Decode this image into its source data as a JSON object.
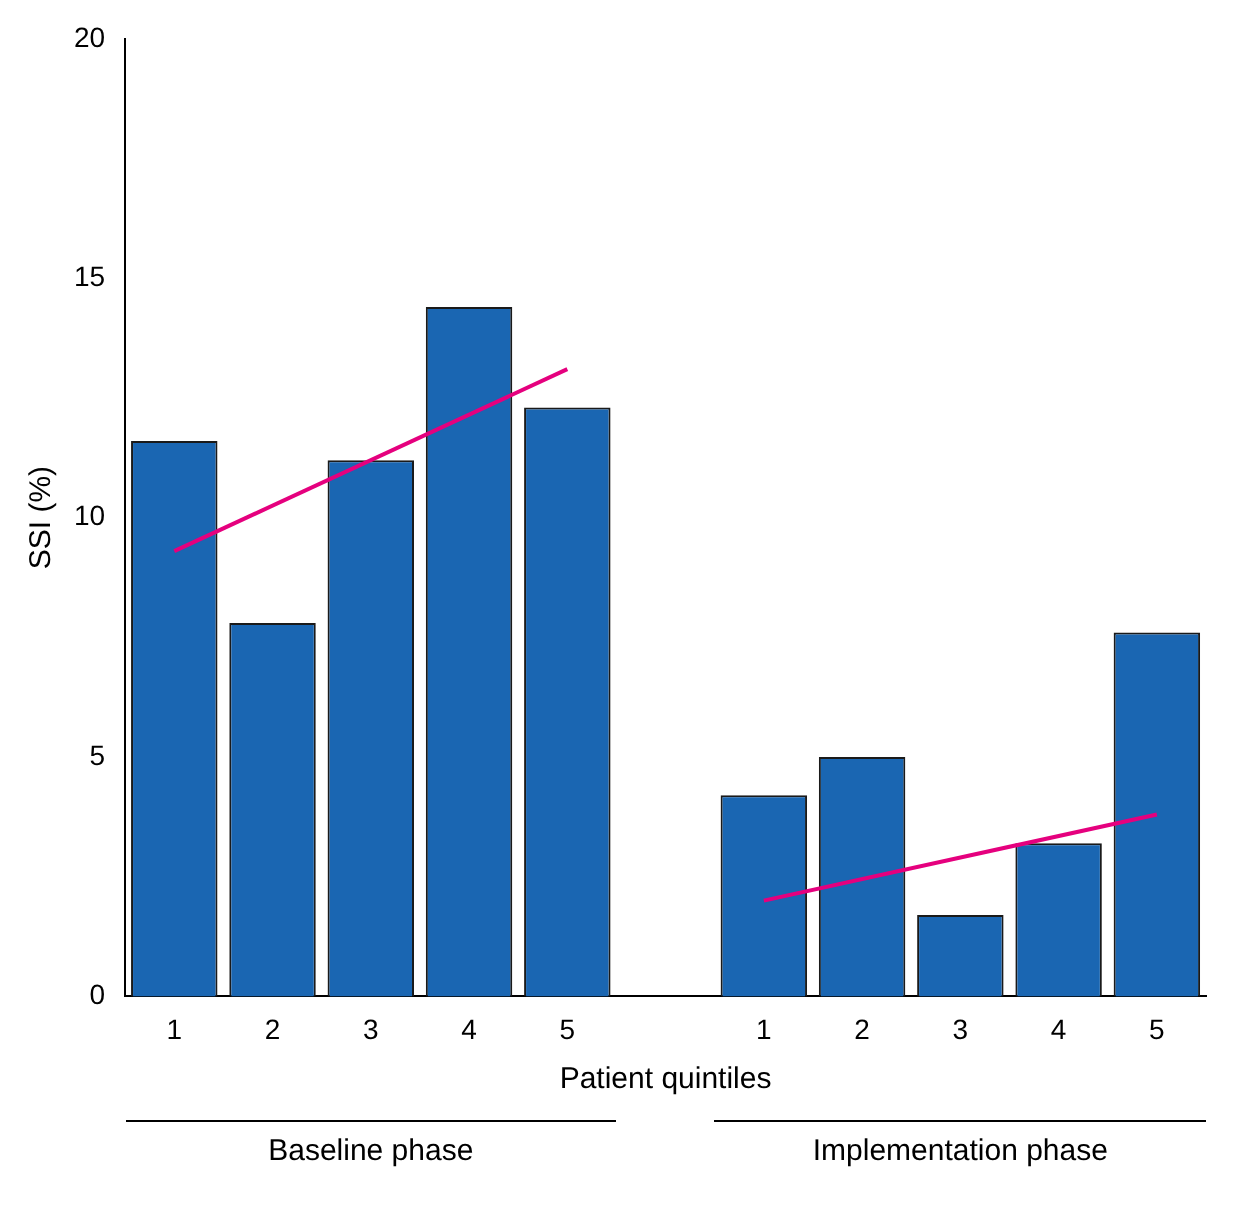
{
  "chart_data": {
    "type": "bar",
    "ylabel": "SSI (%)",
    "xlabel": "Patient quintiles",
    "categories": [
      "1",
      "2",
      "3",
      "4",
      "5",
      null,
      "1",
      "2",
      "3",
      "4",
      "5"
    ],
    "series": [
      {
        "color": "#1a66b2",
        "values": [
          11.6,
          7.8,
          11.2,
          14.4,
          12.3,
          null,
          4.2,
          5.0,
          1.7,
          3.2,
          7.6
        ]
      },
      {
        "type": "line",
        "color": "#e5007e",
        "values": [
          9.3,
          null,
          null,
          null,
          13.1,
          null,
          null,
          null,
          null,
          null,
          null
        ]
      },
      {
        "type": "line",
        "color": "#e5007e",
        "values": [
          null,
          null,
          null,
          null,
          null,
          null,
          2.0,
          null,
          null,
          null,
          3.8
        ]
      }
    ],
    "ylim": [
      0,
      20
    ],
    "yticks": [
      0,
      5,
      10,
      15,
      20
    ],
    "grid": false,
    "legend": false,
    "marker": "none",
    "line_style": "solid",
    "annotations": [
      "Baseline phase",
      "Implementation phase"
    ]
  }
}
